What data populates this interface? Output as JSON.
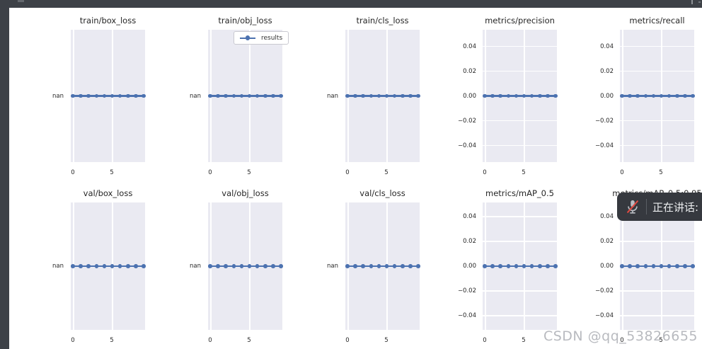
{
  "window": {
    "titlebar_color": "#3d4147",
    "content_background": "#ffffff"
  },
  "colors": {
    "series_blue": "#4c72b0",
    "axes_background": "#eaeaf2",
    "grid_line": "#ffffff",
    "overlay_background": "#36393f",
    "mic_slash_red": "#e14b43"
  },
  "figure": {
    "grid": {
      "rows": 2,
      "cols": 5
    },
    "style": "seaborn-darkgrid"
  },
  "chart_data": [
    {
      "type": "line",
      "title": "train/box_loss",
      "series_name": "results",
      "y_axis": "nan",
      "ytick_labels": [
        "nan"
      ],
      "xtick_labels": [
        "0",
        "5"
      ],
      "xlim": [
        -0.45,
        9.45
      ],
      "x": [
        0,
        1,
        2,
        3,
        4,
        5,
        6,
        7,
        8,
        9
      ],
      "values": [
        null,
        null,
        null,
        null,
        null,
        null,
        null,
        null,
        null,
        null
      ],
      "legend": false
    },
    {
      "type": "line",
      "title": "train/obj_loss",
      "series_name": "results",
      "y_axis": "nan",
      "ytick_labels": [
        "nan"
      ],
      "xtick_labels": [
        "0",
        "5"
      ],
      "xlim": [
        -0.45,
        9.45
      ],
      "x": [
        0,
        1,
        2,
        3,
        4,
        5,
        6,
        7,
        8,
        9
      ],
      "values": [
        null,
        null,
        null,
        null,
        null,
        null,
        null,
        null,
        null,
        null
      ],
      "legend": true
    },
    {
      "type": "line",
      "title": "train/cls_loss",
      "series_name": "results",
      "y_axis": "nan",
      "ytick_labels": [
        "nan"
      ],
      "xtick_labels": [
        "0",
        "5"
      ],
      "xlim": [
        -0.45,
        9.45
      ],
      "x": [
        0,
        1,
        2,
        3,
        4,
        5,
        6,
        7,
        8,
        9
      ],
      "values": [
        null,
        null,
        null,
        null,
        null,
        null,
        null,
        null,
        null,
        null
      ],
      "legend": false
    },
    {
      "type": "line",
      "title": "metrics/precision",
      "series_name": "results",
      "y_axis": "numeric",
      "ytick_labels": [
        "0.04",
        "0.02",
        "0.00",
        "−0.02",
        "−0.04"
      ],
      "xtick_labels": [
        "0",
        "5"
      ],
      "xlim": [
        -0.45,
        9.45
      ],
      "ylim": [
        -0.054,
        0.054
      ],
      "x": [
        0,
        1,
        2,
        3,
        4,
        5,
        6,
        7,
        8,
        9
      ],
      "values": [
        0,
        0,
        0,
        0,
        0,
        0,
        0,
        0,
        0,
        0
      ],
      "legend": false
    },
    {
      "type": "line",
      "title": "metrics/recall",
      "series_name": "results",
      "y_axis": "numeric",
      "ytick_labels": [
        "0.04",
        "0.02",
        "0.00",
        "−0.02",
        "−0.04"
      ],
      "xtick_labels": [
        "0",
        "5"
      ],
      "xlim": [
        -0.45,
        9.45
      ],
      "ylim": [
        -0.054,
        0.054
      ],
      "x": [
        0,
        1,
        2,
        3,
        4,
        5,
        6,
        7,
        8,
        9
      ],
      "values": [
        0,
        0,
        0,
        0,
        0,
        0,
        0,
        0,
        0,
        0
      ],
      "legend": false
    },
    {
      "type": "line",
      "title": "val/box_loss",
      "series_name": "results",
      "y_axis": "nan",
      "ytick_labels": [
        "nan"
      ],
      "xtick_labels": [
        "0",
        "5"
      ],
      "xlim": [
        -0.45,
        9.45
      ],
      "x": [
        0,
        1,
        2,
        3,
        4,
        5,
        6,
        7,
        8,
        9
      ],
      "values": [
        null,
        null,
        null,
        null,
        null,
        null,
        null,
        null,
        null,
        null
      ],
      "legend": false
    },
    {
      "type": "line",
      "title": "val/obj_loss",
      "series_name": "results",
      "y_axis": "nan",
      "ytick_labels": [
        "nan"
      ],
      "xtick_labels": [
        "0",
        "5"
      ],
      "xlim": [
        -0.45,
        9.45
      ],
      "x": [
        0,
        1,
        2,
        3,
        4,
        5,
        6,
        7,
        8,
        9
      ],
      "values": [
        null,
        null,
        null,
        null,
        null,
        null,
        null,
        null,
        null,
        null
      ],
      "legend": false
    },
    {
      "type": "line",
      "title": "val/cls_loss",
      "series_name": "results",
      "y_axis": "nan",
      "ytick_labels": [
        "nan"
      ],
      "xtick_labels": [
        "0",
        "5"
      ],
      "xlim": [
        -0.45,
        9.45
      ],
      "x": [
        0,
        1,
        2,
        3,
        4,
        5,
        6,
        7,
        8,
        9
      ],
      "values": [
        null,
        null,
        null,
        null,
        null,
        null,
        null,
        null,
        null,
        null
      ],
      "legend": false
    },
    {
      "type": "line",
      "title": "metrics/mAP_0.5",
      "series_name": "results",
      "y_axis": "numeric",
      "ytick_labels": [
        "0.04",
        "0.02",
        "0.00",
        "−0.02",
        "−0.04"
      ],
      "xtick_labels": [
        "0",
        "5"
      ],
      "xlim": [
        -0.45,
        9.45
      ],
      "ylim": [
        -0.054,
        0.054
      ],
      "x": [
        0,
        1,
        2,
        3,
        4,
        5,
        6,
        7,
        8,
        9
      ],
      "values": [
        0,
        0,
        0,
        0,
        0,
        0,
        0,
        0,
        0,
        0
      ],
      "legend": false
    },
    {
      "type": "line",
      "title": "metrics/mAP_0.5:0.95",
      "series_name": "results",
      "y_axis": "numeric",
      "ytick_labels": [
        "0.04",
        "0.02",
        "0.00",
        "−0.02",
        "−0.04"
      ],
      "xtick_labels": [
        "0",
        "5"
      ],
      "xlim": [
        -0.45,
        9.45
      ],
      "ylim": [
        -0.054,
        0.054
      ],
      "x": [
        0,
        1,
        2,
        3,
        4,
        5,
        6,
        7,
        8,
        9
      ],
      "values": [
        0,
        0,
        0,
        0,
        0,
        0,
        0,
        0,
        0,
        0
      ],
      "legend": false
    }
  ],
  "legend": {
    "label": "results"
  },
  "overlay": {
    "speaking_label": "正在讲话:",
    "mic_state": "muted"
  },
  "watermark": {
    "text": "CSDN @qq_53826655"
  }
}
